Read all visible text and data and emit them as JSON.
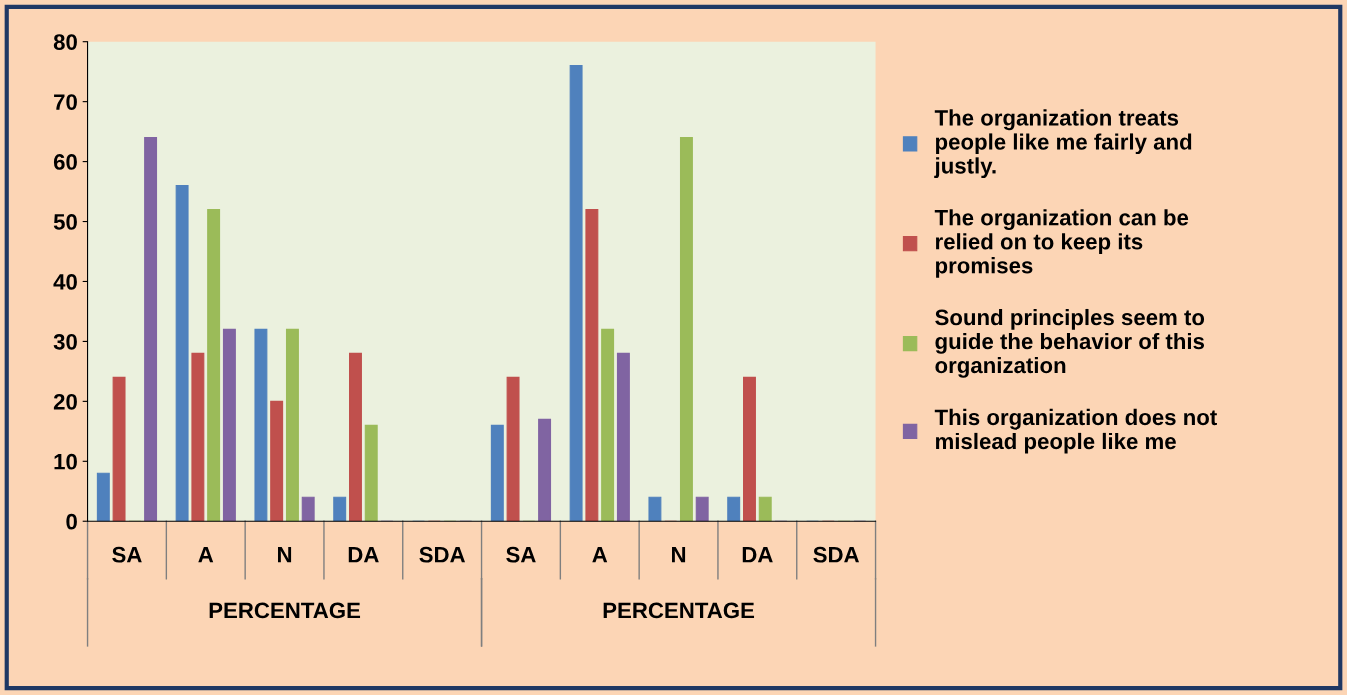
{
  "chart_data": {
    "type": "bar",
    "categories": [
      "SA",
      "A",
      "N",
      "DA",
      "SDA",
      "SA",
      "A",
      "N",
      "DA",
      "SDA"
    ],
    "series": [
      {
        "name": "The organization treats people like me fairly and justly.",
        "color": "#4f81bd",
        "values": [
          8,
          56,
          32,
          4,
          0,
          16,
          76,
          4,
          4,
          0
        ]
      },
      {
        "name": "The organization can be relied on to keep its promises",
        "color": "#c0504d",
        "values": [
          24,
          28,
          20,
          28,
          0,
          24,
          52,
          0,
          24,
          0
        ]
      },
      {
        "name": "Sound principles seem to guide the behavior of this organization",
        "color": "#9bbb59",
        "values": [
          0,
          52,
          32,
          16,
          0,
          0,
          32,
          64,
          4,
          0
        ]
      },
      {
        "name": "This organization does not mislead people like me",
        "color": "#8064a2",
        "values": [
          64,
          32,
          4,
          0,
          0,
          17,
          28,
          4,
          0,
          0
        ]
      }
    ],
    "annotations": [
      "PERCENTAGE",
      "PERCENTAGE"
    ],
    "ylim": [
      0,
      80
    ],
    "yticks": [
      0,
      10,
      20,
      30,
      40,
      50,
      60,
      70,
      80
    ],
    "grid": false,
    "legend": "right"
  }
}
